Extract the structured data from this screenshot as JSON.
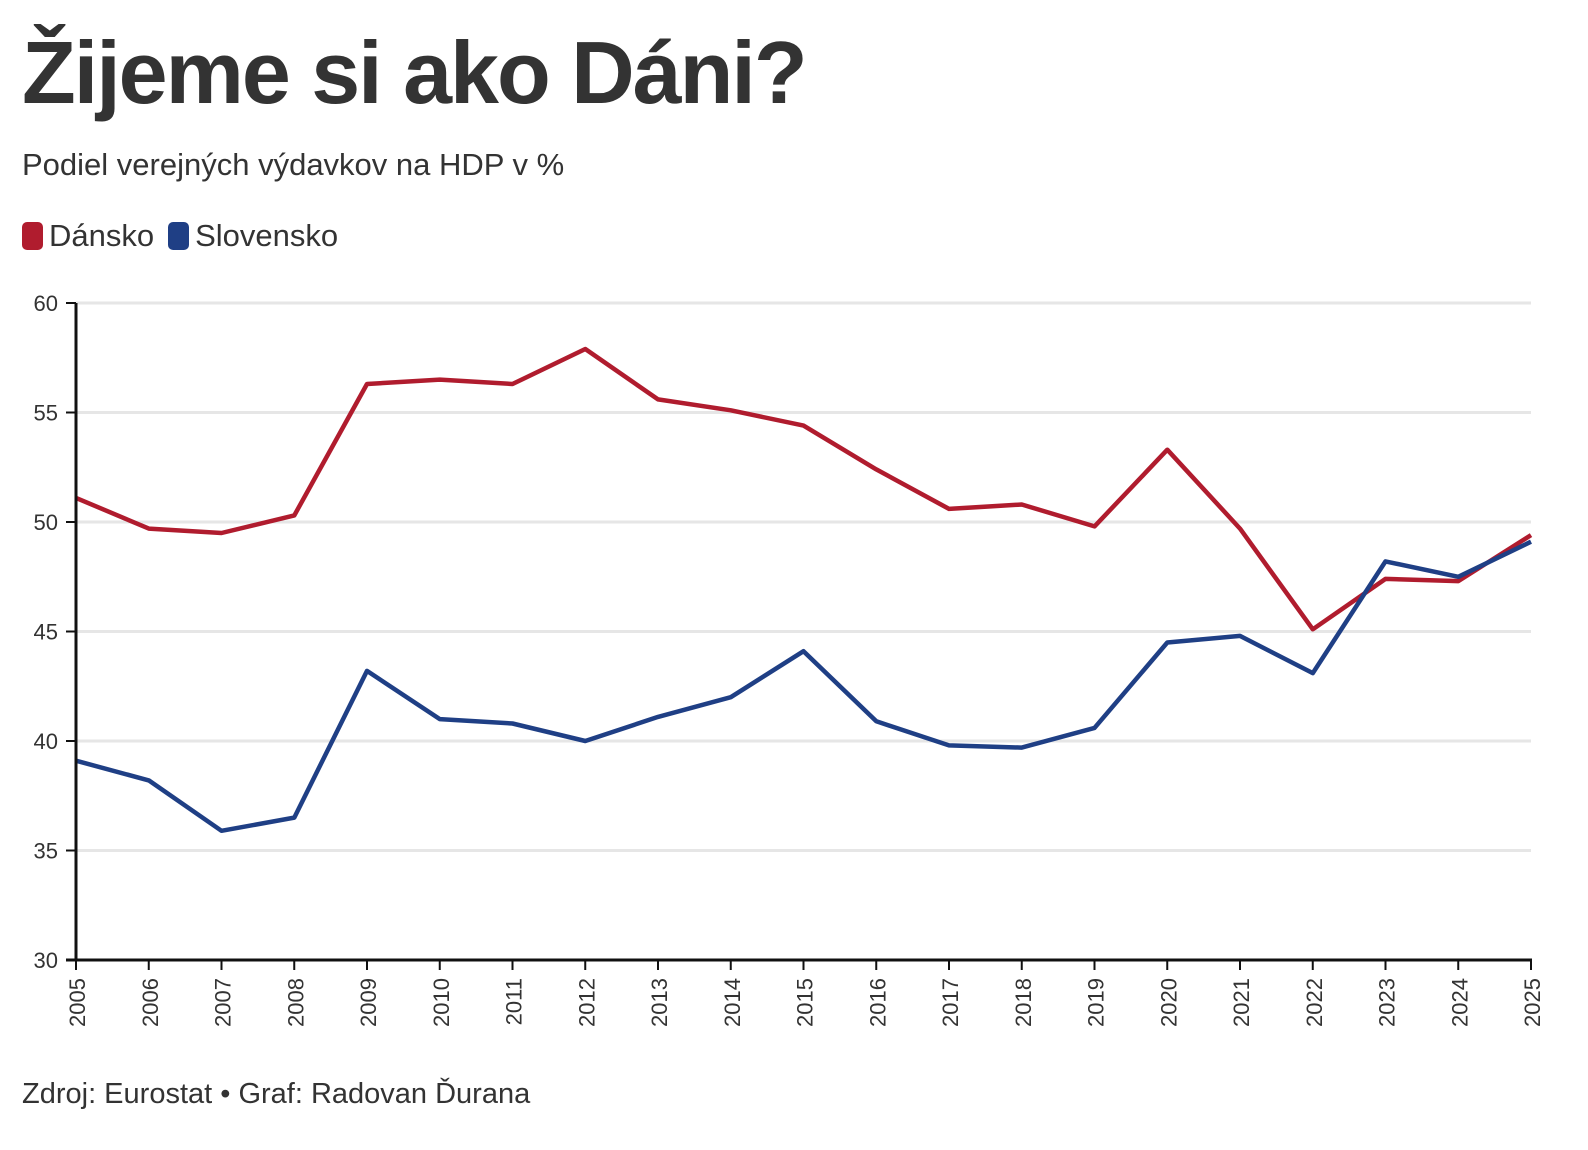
{
  "header": {
    "title": "Žijeme si ako Dáni?",
    "subtitle": "Podiel verejných výdavkov na HDP v %"
  },
  "footer": {
    "source": "Zdroj: Eurostat • Graf: Radovan Ďurana"
  },
  "chart_data": {
    "type": "line",
    "title": "Žijeme si ako Dáni?",
    "subtitle": "Podiel verejných výdavkov na HDP v %",
    "xlabel": "",
    "ylabel": "",
    "x": [
      "2005",
      "2006",
      "2007",
      "2008",
      "2009",
      "2010",
      "2011",
      "2012",
      "2013",
      "2014",
      "2015",
      "2016",
      "2017",
      "2018",
      "2019",
      "2020",
      "2021",
      "2022",
      "2023",
      "2024",
      "2025"
    ],
    "ylim": [
      30,
      60
    ],
    "yticks": [
      "30",
      "35",
      "40",
      "45",
      "50",
      "55",
      "60"
    ],
    "grid": "horizontal",
    "legend_position": "top-left",
    "series": [
      {
        "name": "Dánsko",
        "color": "#b01c2e",
        "values": [
          51.1,
          49.7,
          49.5,
          50.3,
          56.3,
          56.5,
          56.3,
          57.9,
          55.6,
          55.1,
          54.4,
          52.4,
          50.6,
          50.8,
          49.8,
          53.3,
          49.7,
          45.1,
          47.4,
          47.3,
          49.4
        ]
      },
      {
        "name": "Slovensko",
        "color": "#1f3f85",
        "values": [
          39.1,
          38.2,
          35.9,
          36.5,
          43.2,
          41.0,
          40.8,
          40.0,
          41.1,
          42.0,
          44.1,
          40.9,
          39.8,
          39.7,
          40.6,
          44.5,
          44.8,
          43.1,
          48.2,
          47.5,
          49.1
        ]
      }
    ]
  }
}
